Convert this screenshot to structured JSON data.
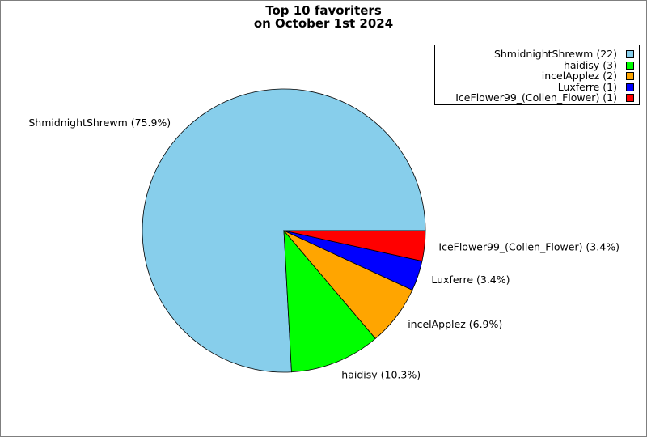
{
  "chart_data": {
    "type": "pie",
    "title_lines": [
      "Top 10 favoriters",
      "on October 1st 2024"
    ],
    "legend_position": "top-right",
    "slices": [
      {
        "name": "ShmidnightShrewm",
        "count": 22,
        "percent": 75.9,
        "color": "#87ceeb",
        "legend_text": "ShmidnightShrewm (22)",
        "label_text": "ShmidnightShrewm (75.9%)"
      },
      {
        "name": "haidisy",
        "count": 3,
        "percent": 10.3,
        "color": "#00ff00",
        "legend_text": "haidisy (3)",
        "label_text": "haidisy (10.3%)"
      },
      {
        "name": "incelApplez",
        "count": 2,
        "percent": 6.9,
        "color": "#ffa500",
        "legend_text": "incelApplez (2)",
        "label_text": "incelApplez (6.9%)"
      },
      {
        "name": "Luxferre",
        "count": 1,
        "percent": 3.4,
        "color": "#0000ff",
        "legend_text": "Luxferre (1)",
        "label_text": "Luxferre (3.4%)"
      },
      {
        "name": "IceFlower99_(Collen_Flower)",
        "count": 1,
        "percent": 3.4,
        "color": "#ff0000",
        "legend_text": "IceFlower99_(Collen_Flower) (1)",
        "label_text": "IceFlower99_(Collen_Flower) (3.4%)"
      }
    ]
  }
}
